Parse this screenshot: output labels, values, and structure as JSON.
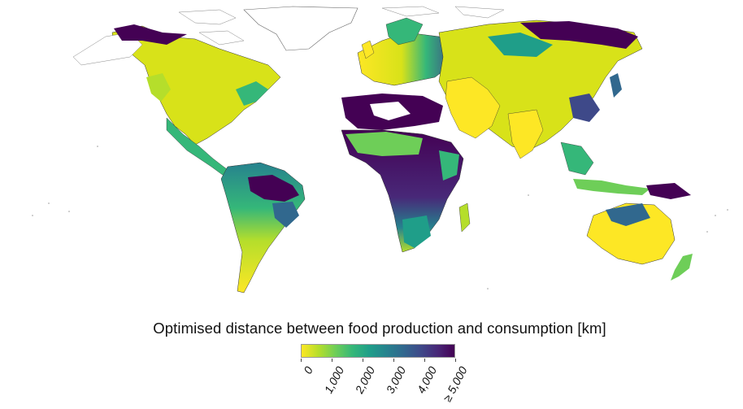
{
  "legend": {
    "title": "Optimised distance between food production and consumption [km]",
    "ticks": [
      "0",
      "1,000",
      "2,000",
      "3,000",
      "4,000",
      "≥ 5,000"
    ],
    "colors": [
      "#fde725",
      "#b5de2b",
      "#6ece58",
      "#35b779",
      "#1f9e89",
      "#26828e",
      "#31688e",
      "#3e4989",
      "#482878",
      "#440154"
    ]
  },
  "colors": {
    "background": "#ffffff",
    "border": "#333333",
    "yellow": "#fde725",
    "light_green": "#b5de2b",
    "green": "#6ece58",
    "teal_green": "#35b779",
    "teal": "#1f9e89",
    "blue_teal": "#26828e",
    "blue": "#31688e",
    "indigo": "#3e4989",
    "purple": "#482878",
    "dark_purple": "#440154"
  }
}
